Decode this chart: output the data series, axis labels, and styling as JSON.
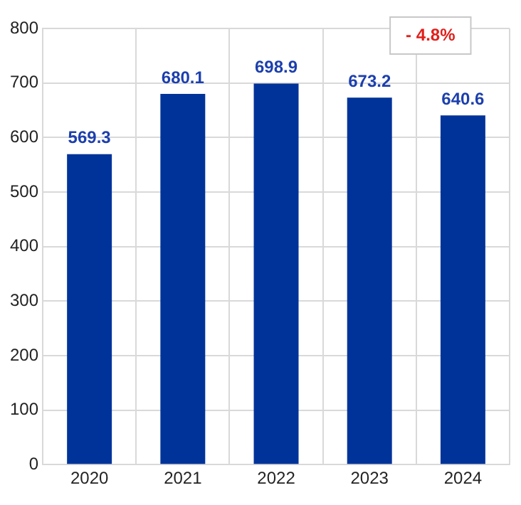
{
  "chart_data": {
    "type": "bar",
    "categories": [
      "2020",
      "2021",
      "2022",
      "2023",
      "2024"
    ],
    "values": [
      569.3,
      680.1,
      698.9,
      673.2,
      640.6
    ],
    "color": "#003399",
    "ylim": [
      0,
      800
    ],
    "yticks": [
      0,
      100,
      200,
      300,
      400,
      500,
      600,
      700,
      800
    ],
    "grid": true,
    "data_labels": true,
    "annotations": [
      "- 4.8%"
    ]
  }
}
